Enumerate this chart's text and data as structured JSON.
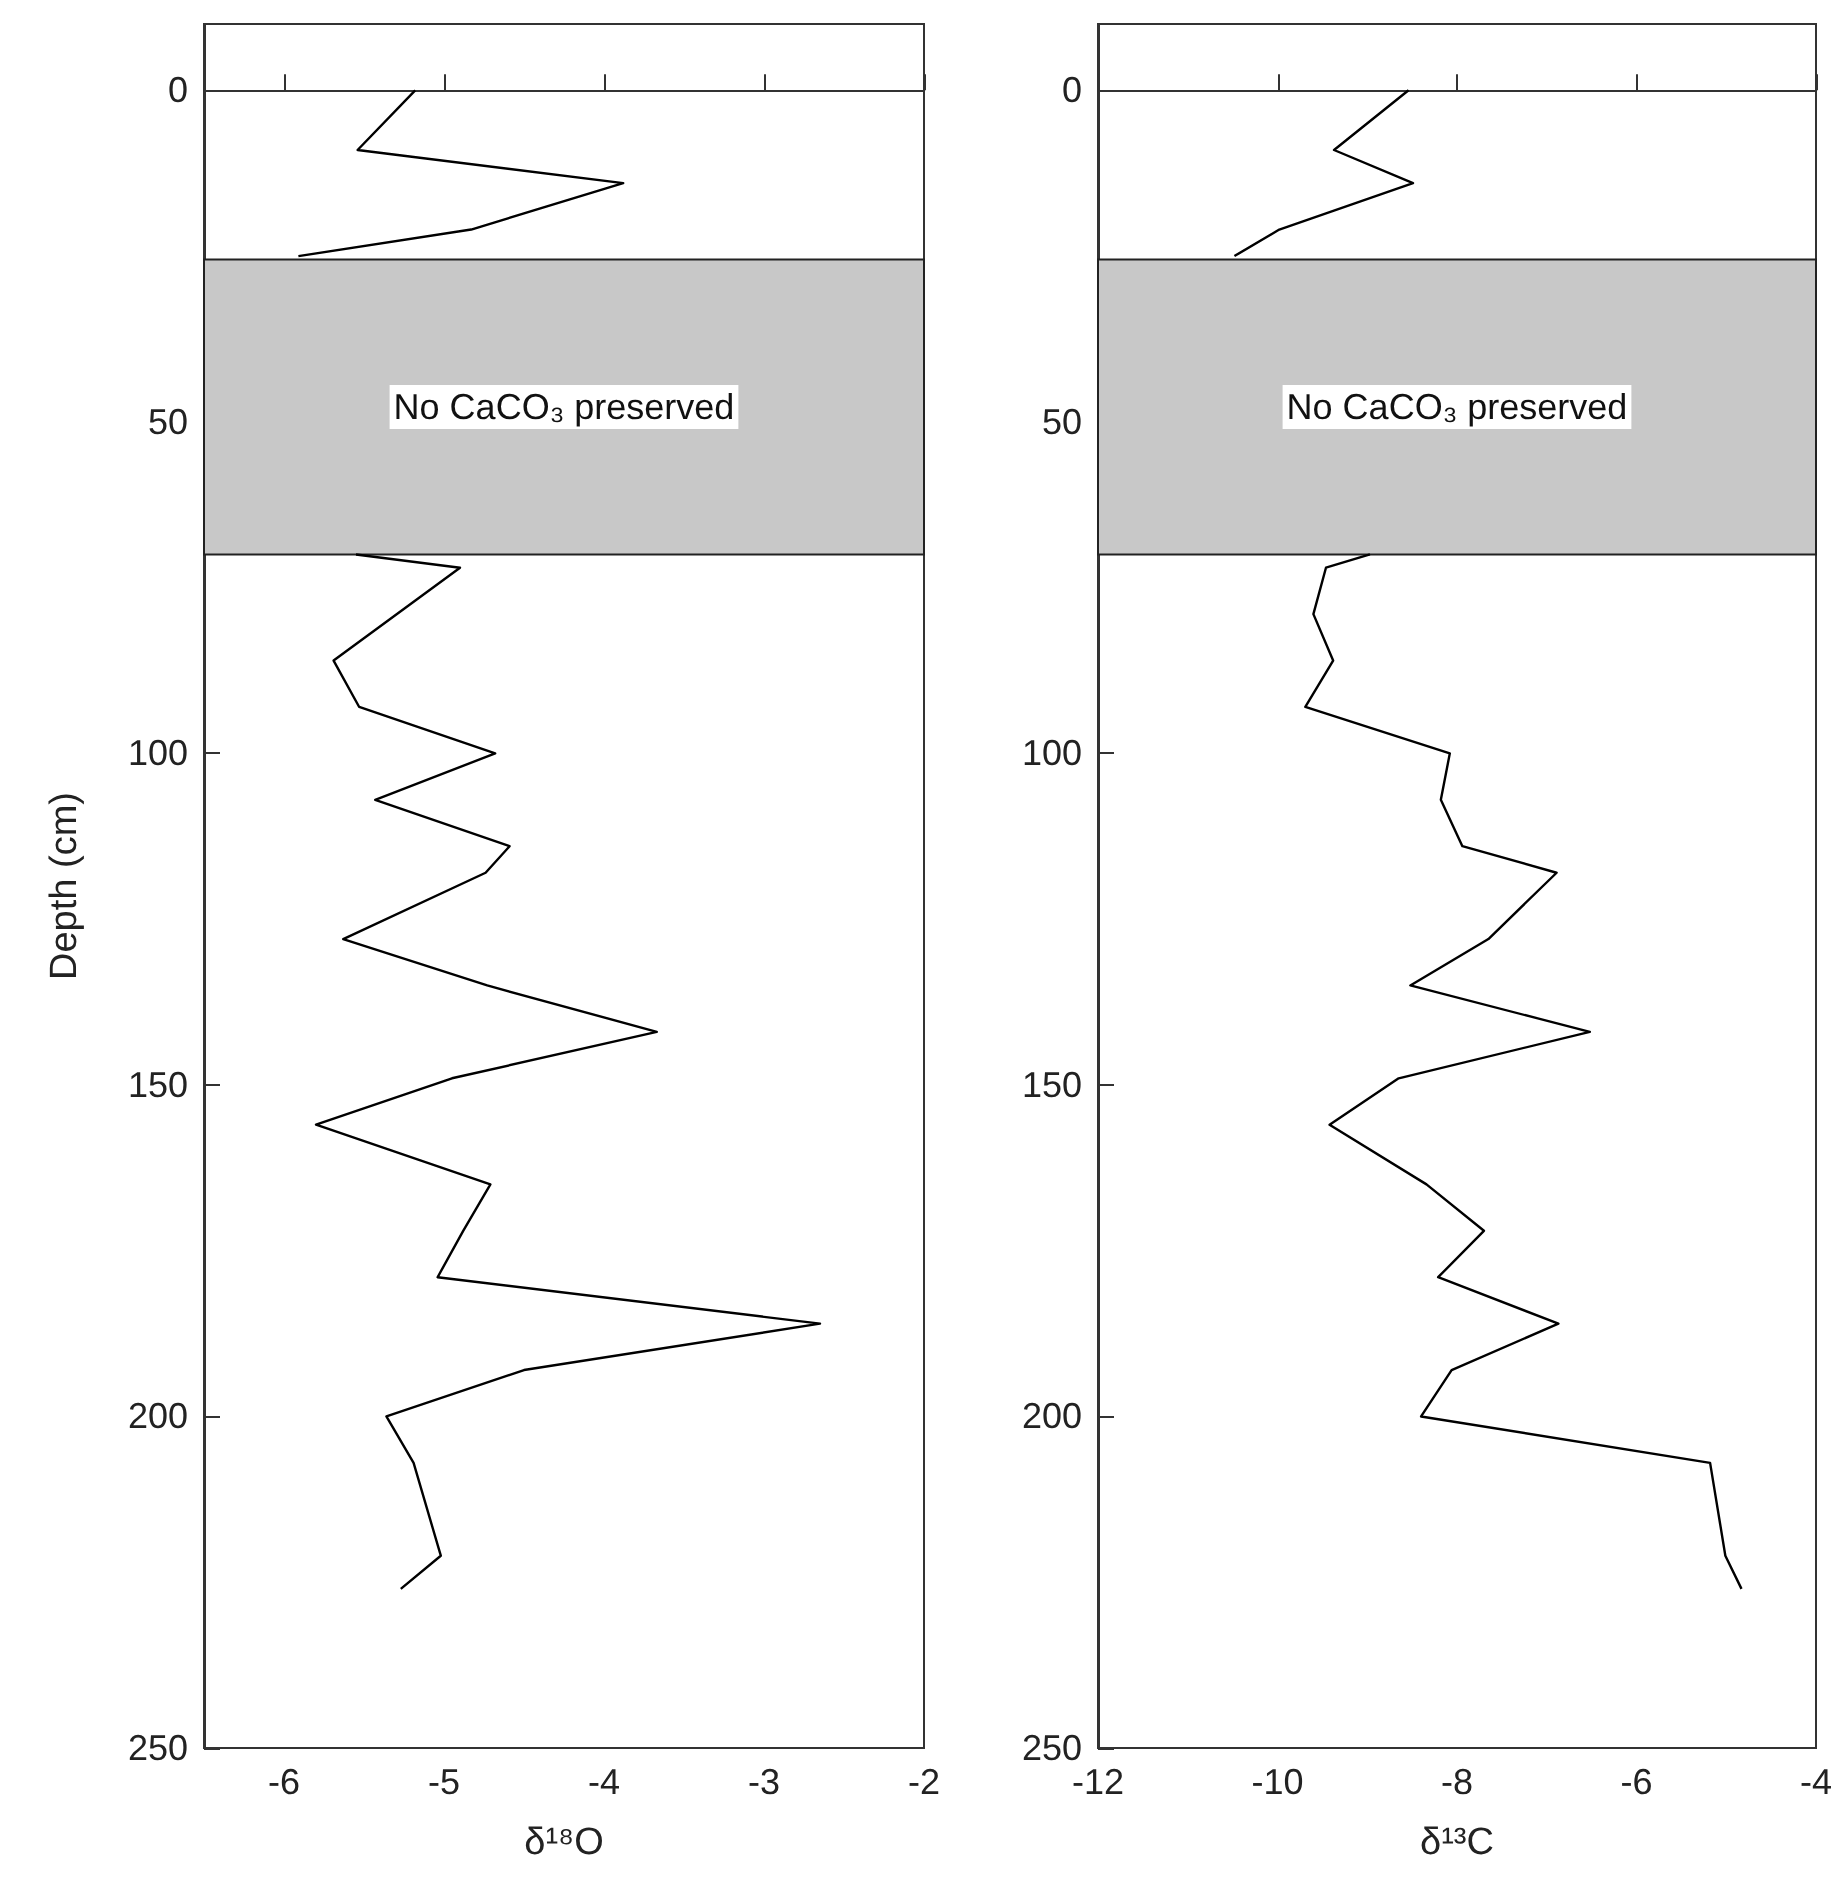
{
  "chart_data": [
    {
      "type": "line",
      "xlabel": "δ¹⁸O",
      "ylabel": "Depth (cm)",
      "xlim": [
        -6.5,
        -2
      ],
      "xticks": [
        -6,
        -5,
        -4,
        -3,
        -2
      ],
      "ylim": [
        250,
        -10
      ],
      "yticks": [
        0,
        50,
        100,
        150,
        200,
        250
      ],
      "marker": "none",
      "line_style": "solid",
      "series": [
        {
          "color": "#000000",
          "x": [
            -5.18,
            -5.54,
            -3.88,
            -4.83,
            -5.91,
            null,
            -5.55,
            -4.9,
            -5.69,
            -5.53,
            -4.68,
            -5.43,
            -4.59,
            -4.74,
            -5.63,
            -4.73,
            -3.67,
            -4.95,
            -5.8,
            -4.71,
            -4.88,
            -5.04,
            -2.65,
            -4.5,
            -5.36,
            -5.19,
            -5.02,
            -5.27
          ],
          "values": [
            0,
            9,
            14,
            21,
            25,
            null,
            70,
            72,
            86,
            93,
            100,
            107,
            114,
            118,
            128,
            135,
            142,
            149,
            156,
            165,
            172,
            179,
            186,
            193,
            200,
            207,
            221,
            226
          ]
        }
      ],
      "bands": [
        {
          "axis": "y",
          "from": 25.5,
          "to": 70,
          "label": "No CaCO₃ preserved",
          "color": "#c8c8c8"
        }
      ]
    },
    {
      "type": "line",
      "xlabel": "δ¹³C",
      "xlim": [
        -12,
        -4
      ],
      "xticks": [
        -12,
        -10,
        -8,
        -6,
        -4
      ],
      "ylim": [
        250,
        -10
      ],
      "yticks": [
        0,
        50,
        100,
        150,
        200,
        250
      ],
      "marker": "none",
      "line_style": "solid",
      "series": [
        {
          "color": "#000000",
          "x": [
            -8.54,
            -9.37,
            -8.49,
            -9.98,
            -10.48,
            null,
            -8.97,
            -9.46,
            -9.6,
            -9.38,
            -9.69,
            -8.08,
            -8.18,
            -7.94,
            -6.89,
            -7.65,
            -8.52,
            -6.52,
            -8.65,
            -9.42,
            -8.34,
            -7.7,
            -8.21,
            -6.87,
            -8.06,
            -8.4,
            -5.18,
            -5.01,
            -4.83
          ],
          "values": [
            0,
            9,
            14,
            21,
            25,
            null,
            70,
            72,
            79,
            86,
            93,
            100,
            107,
            114,
            118,
            128,
            135,
            142,
            149,
            156,
            165,
            172,
            179,
            186,
            193,
            200,
            207,
            221,
            226
          ]
        }
      ],
      "bands": [
        {
          "axis": "y",
          "from": 25.5,
          "to": 70,
          "label": "No CaCO₃ preserved",
          "color": "#c8c8c8"
        }
      ]
    }
  ]
}
